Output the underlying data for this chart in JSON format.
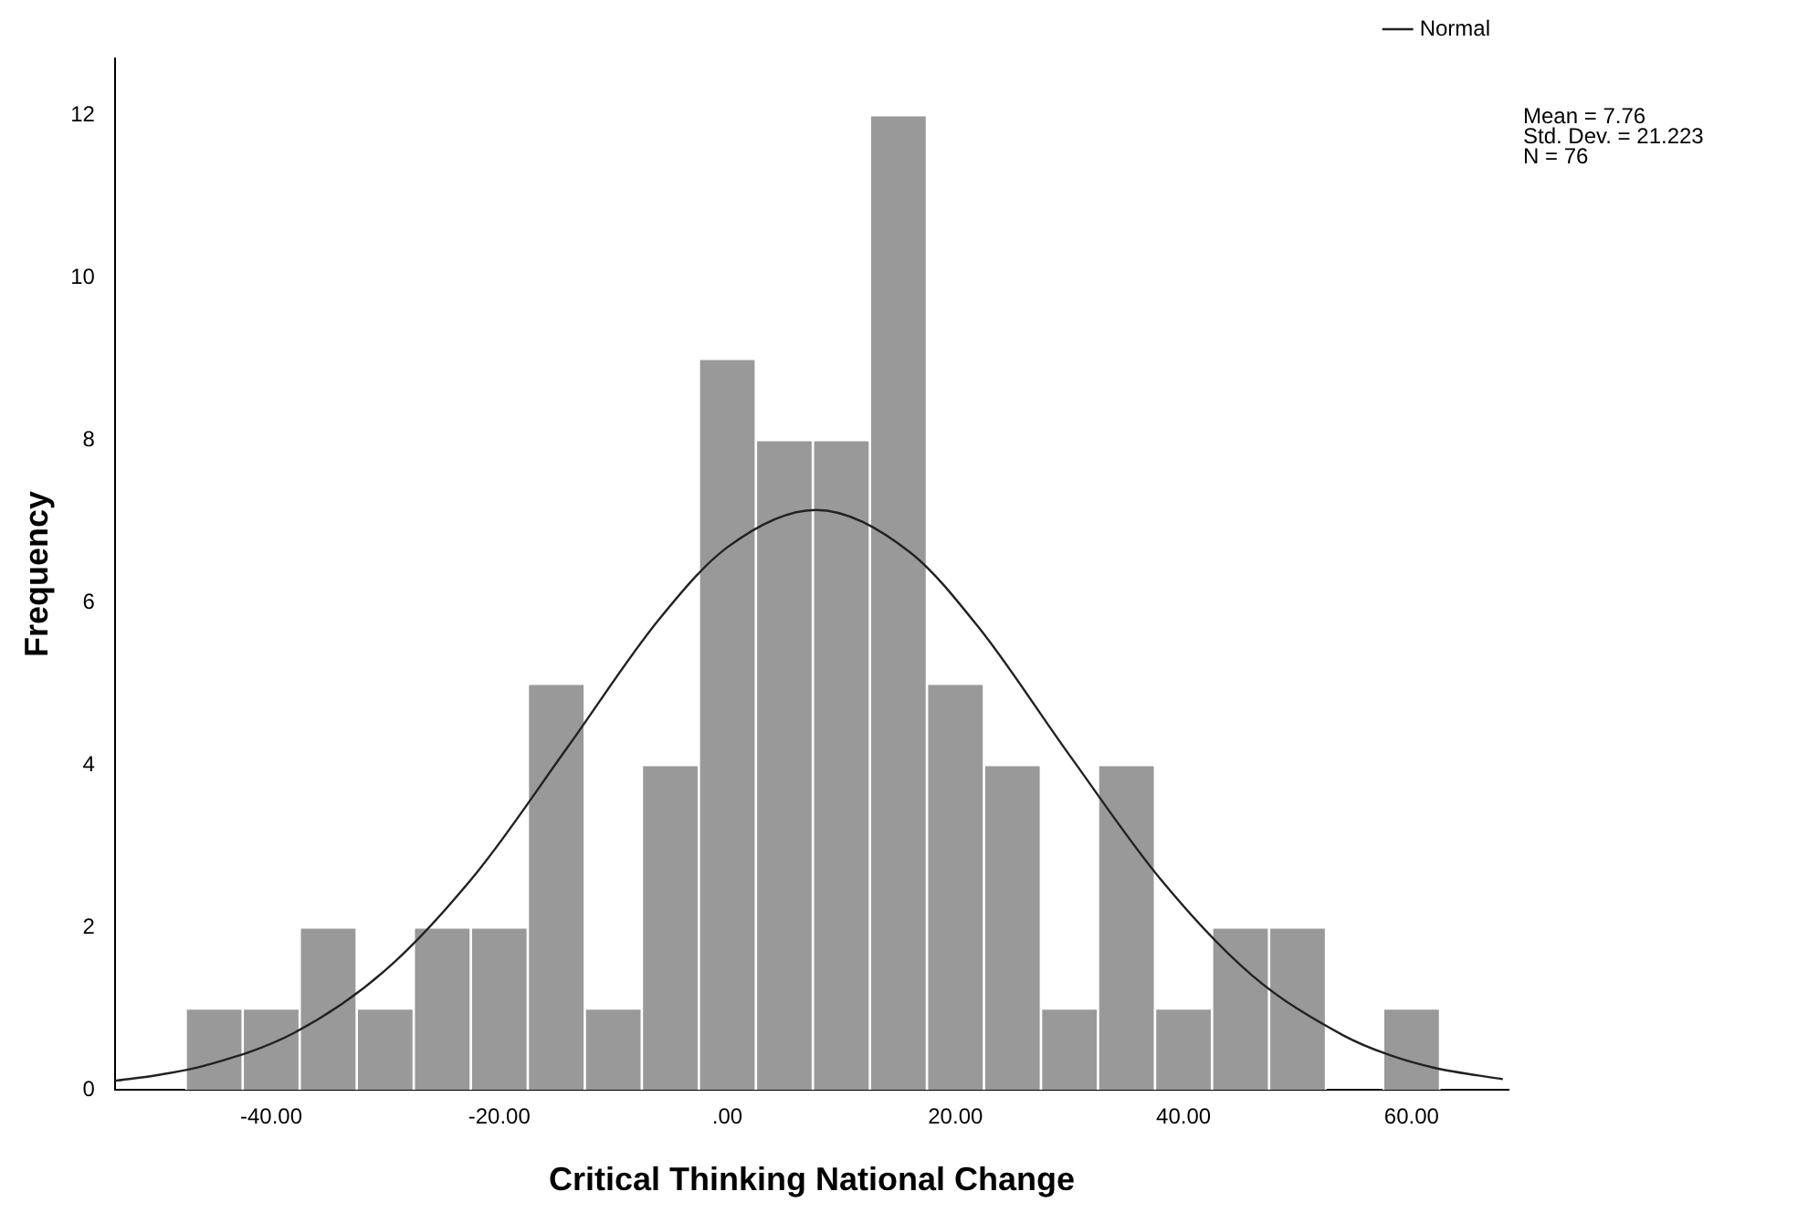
{
  "chart_data": {
    "type": "histogram",
    "xlabel": "Critical Thinking National Change",
    "ylabel": "Frequency",
    "bins": [
      -47.5,
      -42.5,
      -37.5,
      -32.5,
      -27.5,
      -22.5,
      -17.5,
      -12.5,
      -7.5,
      -2.5,
      2.5,
      7.5,
      12.5,
      17.5,
      22.5,
      27.5,
      32.5,
      37.5,
      42.5,
      47.5,
      52.5,
      57.5,
      62.5
    ],
    "values": [
      1,
      1,
      2,
      1,
      2,
      2,
      5,
      1,
      4,
      9,
      8,
      8,
      12,
      5,
      4,
      1,
      4,
      1,
      2,
      2,
      0,
      1
    ],
    "color": "#999999",
    "series": [
      {
        "type": "line",
        "name": "Normal",
        "color": "#222222",
        "x": [
          -53.7,
          -50,
          -46,
          -38,
          -30,
          -22,
          -14,
          -6,
          0,
          7.76,
          16,
          22,
          30,
          38,
          46,
          54,
          58,
          62,
          68
        ],
        "values": [
          0.11,
          0.18,
          0.29,
          0.7,
          1.47,
          2.67,
          4.22,
          5.79,
          6.68,
          7.14,
          6.62,
          5.7,
          4.12,
          2.59,
          1.41,
          0.67,
          0.43,
          0.27,
          0.13
        ]
      }
    ],
    "xlim": [
      -53.7,
      68.5
    ],
    "xticks": [
      {
        "value": -40,
        "label": "-40.00"
      },
      {
        "value": -20,
        "label": "-20.00"
      },
      {
        "value": 0,
        "label": ".00"
      },
      {
        "value": 20,
        "label": "20.00"
      },
      {
        "value": 40,
        "label": "40.00"
      },
      {
        "value": 60,
        "label": "60.00"
      }
    ],
    "ylim": [
      0,
      12.7
    ],
    "yticks": [
      0,
      2,
      4,
      6,
      8,
      10,
      12
    ],
    "grid": false,
    "legend": "top right",
    "marker": "none",
    "annotations": [
      "Mean = 7.76",
      "Std. Dev. = 21.223",
      "N = 76"
    ]
  }
}
